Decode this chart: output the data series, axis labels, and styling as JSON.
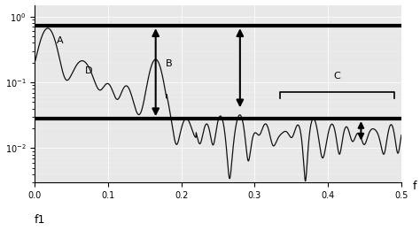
{
  "xlabel": "f",
  "xlabel2": "f1",
  "xlim": [
    0.0,
    0.5
  ],
  "ylim": [
    0.003,
    1.5
  ],
  "hline1_y": 0.72,
  "hline2_y": 0.028,
  "label_A": "A",
  "label_B": "B",
  "label_C": "C",
  "label_D": "D",
  "bg_color": "#e8e8e8",
  "line_color": "#111111",
  "hline_color": "#000000",
  "arrow_color": "#000000",
  "annotation_fontsize": 8,
  "ytick_positions": [
    0.01,
    0.1,
    1.0
  ],
  "ytick_labels": [
    "10-2",
    "10-1",
    "10 0"
  ],
  "xtick_positions": [
    0.0,
    0.1,
    0.2,
    0.3,
    0.4,
    0.5
  ],
  "xtick_labels": [
    "0.0",
    "0.1",
    "0.2",
    "0.3",
    "0.4",
    "0.5"
  ]
}
